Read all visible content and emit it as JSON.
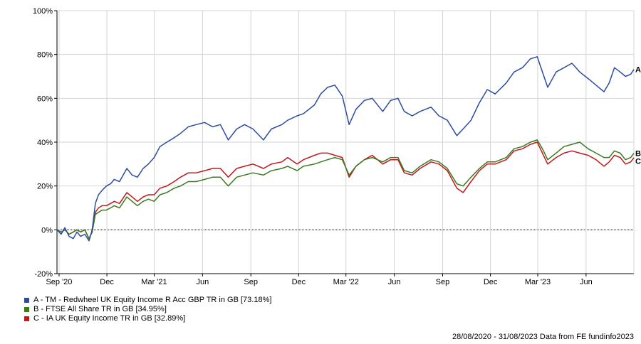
{
  "chart_data": {
    "type": "line",
    "ylim": [
      -20,
      100
    ],
    "y_ticks": [
      "100%",
      "80%",
      "60%",
      "40%",
      "20%",
      "0%",
      "-20%"
    ],
    "y_tick_values": [
      100,
      80,
      60,
      40,
      20,
      0,
      -20
    ],
    "x_ticks": [
      "Sep '20",
      "Dec",
      "Mar '21",
      "Jun",
      "Sep",
      "Dec",
      "Mar '22",
      "Jun",
      "Sep",
      "Dec",
      "Mar '23",
      "Jun"
    ],
    "x_tick_dates": [
      "2020-09-01",
      "2020-12-01",
      "2021-03-01",
      "2021-06-01",
      "2021-09-01",
      "2021-12-01",
      "2022-03-01",
      "2022-06-01",
      "2022-09-01",
      "2022-12-01",
      "2023-03-01",
      "2023-06-01"
    ],
    "x_range": [
      "2020-08-28",
      "2023-08-31"
    ],
    "grid": true,
    "legend_position": "bottom-left",
    "series": [
      {
        "name": "A - TM - Redwheel UK Equity Income R Acc GBP TR in GB [73.18%]",
        "end_label": "A",
        "color": "#2b4da0",
        "points": [
          [
            "2020-08-28",
            0
          ],
          [
            "2020-09-05",
            -2
          ],
          [
            "2020-09-12",
            1
          ],
          [
            "2020-09-20",
            -3
          ],
          [
            "2020-09-28",
            -4
          ],
          [
            "2020-10-05",
            -1
          ],
          [
            "2020-10-12",
            -3
          ],
          [
            "2020-10-20",
            -2
          ],
          [
            "2020-10-28",
            -5
          ],
          [
            "2020-11-03",
            0
          ],
          [
            "2020-11-09",
            12
          ],
          [
            "2020-11-15",
            16
          ],
          [
            "2020-11-22",
            18
          ],
          [
            "2020-11-30",
            20
          ],
          [
            "2020-12-08",
            21
          ],
          [
            "2020-12-15",
            23
          ],
          [
            "2020-12-25",
            22
          ],
          [
            "2021-01-08",
            28
          ],
          [
            "2021-01-18",
            25
          ],
          [
            "2021-01-28",
            24
          ],
          [
            "2021-02-08",
            28
          ],
          [
            "2021-02-18",
            30
          ],
          [
            "2021-03-01",
            33
          ],
          [
            "2021-03-12",
            38
          ],
          [
            "2021-03-25",
            40
          ],
          [
            "2021-04-08",
            42
          ],
          [
            "2021-04-20",
            44
          ],
          [
            "2021-05-05",
            47
          ],
          [
            "2021-05-20",
            48
          ],
          [
            "2021-06-05",
            49
          ],
          [
            "2021-06-20",
            47
          ],
          [
            "2021-07-05",
            48
          ],
          [
            "2021-07-20",
            41
          ],
          [
            "2021-08-05",
            46
          ],
          [
            "2021-08-20",
            48
          ],
          [
            "2021-09-05",
            46
          ],
          [
            "2021-09-25",
            41
          ],
          [
            "2021-10-10",
            46
          ],
          [
            "2021-10-30",
            48
          ],
          [
            "2021-11-10",
            50
          ],
          [
            "2021-11-28",
            52
          ],
          [
            "2021-12-10",
            53
          ],
          [
            "2021-12-31",
            57
          ],
          [
            "2022-01-12",
            62
          ],
          [
            "2022-01-25",
            65
          ],
          [
            "2022-02-08",
            66
          ],
          [
            "2022-02-22",
            61
          ],
          [
            "2022-03-07",
            48
          ],
          [
            "2022-03-20",
            55
          ],
          [
            "2022-04-05",
            59
          ],
          [
            "2022-04-20",
            60
          ],
          [
            "2022-05-10",
            54
          ],
          [
            "2022-05-25",
            59
          ],
          [
            "2022-06-08",
            60
          ],
          [
            "2022-06-20",
            54
          ],
          [
            "2022-07-05",
            52
          ],
          [
            "2022-07-20",
            54
          ],
          [
            "2022-08-10",
            56
          ],
          [
            "2022-08-25",
            52
          ],
          [
            "2022-09-10",
            50
          ],
          [
            "2022-09-28",
            43
          ],
          [
            "2022-10-10",
            46
          ],
          [
            "2022-10-25",
            50
          ],
          [
            "2022-11-10",
            58
          ],
          [
            "2022-11-25",
            64
          ],
          [
            "2022-12-10",
            62
          ],
          [
            "2022-12-31",
            67
          ],
          [
            "2023-01-15",
            72
          ],
          [
            "2023-01-31",
            74
          ],
          [
            "2023-02-15",
            78
          ],
          [
            "2023-02-28",
            79
          ],
          [
            "2023-03-10",
            72
          ],
          [
            "2023-03-20",
            65
          ],
          [
            "2023-04-05",
            72
          ],
          [
            "2023-04-20",
            74
          ],
          [
            "2023-05-05",
            76
          ],
          [
            "2023-05-20",
            72
          ],
          [
            "2023-06-05",
            69
          ],
          [
            "2023-06-20",
            66
          ],
          [
            "2023-07-05",
            63
          ],
          [
            "2023-07-15",
            67
          ],
          [
            "2023-07-25",
            74
          ],
          [
            "2023-08-05",
            72
          ],
          [
            "2023-08-15",
            70
          ],
          [
            "2023-08-25",
            71
          ],
          [
            "2023-08-31",
            73.18
          ]
        ]
      },
      {
        "name": "B - FTSE All Share TR in GB [34.95%]",
        "end_label": "B",
        "color": "#3c7a1e",
        "points": [
          [
            "2020-08-28",
            0
          ],
          [
            "2020-09-05",
            -1
          ],
          [
            "2020-09-12",
            0
          ],
          [
            "2020-09-20",
            -2
          ],
          [
            "2020-09-28",
            -1
          ],
          [
            "2020-10-05",
            0
          ],
          [
            "2020-10-12",
            -1
          ],
          [
            "2020-10-20",
            0
          ],
          [
            "2020-10-28",
            -4
          ],
          [
            "2020-11-03",
            -1
          ],
          [
            "2020-11-09",
            7
          ],
          [
            "2020-11-15",
            8
          ],
          [
            "2020-11-22",
            9
          ],
          [
            "2020-11-30",
            9
          ],
          [
            "2020-12-08",
            10
          ],
          [
            "2020-12-15",
            11
          ],
          [
            "2020-12-25",
            10
          ],
          [
            "2021-01-08",
            15
          ],
          [
            "2021-01-18",
            13
          ],
          [
            "2021-01-28",
            11
          ],
          [
            "2021-02-08",
            13
          ],
          [
            "2021-02-18",
            14
          ],
          [
            "2021-03-01",
            13
          ],
          [
            "2021-03-12",
            16
          ],
          [
            "2021-03-25",
            17
          ],
          [
            "2021-04-08",
            19
          ],
          [
            "2021-04-20",
            20
          ],
          [
            "2021-05-05",
            22
          ],
          [
            "2021-05-20",
            22
          ],
          [
            "2021-06-05",
            23
          ],
          [
            "2021-06-20",
            24
          ],
          [
            "2021-07-05",
            24
          ],
          [
            "2021-07-20",
            20
          ],
          [
            "2021-08-05",
            24
          ],
          [
            "2021-08-20",
            25
          ],
          [
            "2021-09-05",
            26
          ],
          [
            "2021-09-25",
            25
          ],
          [
            "2021-10-10",
            27
          ],
          [
            "2021-10-30",
            28
          ],
          [
            "2021-11-10",
            29
          ],
          [
            "2021-11-28",
            27
          ],
          [
            "2021-12-10",
            29
          ],
          [
            "2021-12-31",
            30
          ],
          [
            "2022-01-12",
            31
          ],
          [
            "2022-01-25",
            32
          ],
          [
            "2022-02-08",
            33
          ],
          [
            "2022-02-22",
            32
          ],
          [
            "2022-03-07",
            25
          ],
          [
            "2022-03-20",
            29
          ],
          [
            "2022-04-05",
            32
          ],
          [
            "2022-04-20",
            33
          ],
          [
            "2022-05-10",
            31
          ],
          [
            "2022-05-25",
            33
          ],
          [
            "2022-06-08",
            33
          ],
          [
            "2022-06-20",
            27
          ],
          [
            "2022-07-05",
            26
          ],
          [
            "2022-07-20",
            29
          ],
          [
            "2022-08-10",
            32
          ],
          [
            "2022-08-25",
            31
          ],
          [
            "2022-09-10",
            28
          ],
          [
            "2022-09-28",
            21
          ],
          [
            "2022-10-10",
            20
          ],
          [
            "2022-10-25",
            24
          ],
          [
            "2022-11-10",
            28
          ],
          [
            "2022-11-25",
            31
          ],
          [
            "2022-12-10",
            31
          ],
          [
            "2022-12-31",
            33
          ],
          [
            "2023-01-15",
            37
          ],
          [
            "2023-01-31",
            38
          ],
          [
            "2023-02-15",
            40
          ],
          [
            "2023-02-28",
            41
          ],
          [
            "2023-03-10",
            37
          ],
          [
            "2023-03-20",
            32
          ],
          [
            "2023-04-05",
            35
          ],
          [
            "2023-04-20",
            38
          ],
          [
            "2023-05-05",
            39
          ],
          [
            "2023-05-20",
            40
          ],
          [
            "2023-06-05",
            37
          ],
          [
            "2023-06-20",
            35
          ],
          [
            "2023-07-05",
            33
          ],
          [
            "2023-07-15",
            33
          ],
          [
            "2023-07-25",
            36
          ],
          [
            "2023-08-05",
            35
          ],
          [
            "2023-08-15",
            32
          ],
          [
            "2023-08-25",
            33
          ],
          [
            "2023-08-31",
            34.95
          ]
        ]
      },
      {
        "name": "C - IA UK Equity Income TR in GB [32.89%]",
        "end_label": "C",
        "color": "#c0181c",
        "points": [
          [
            "2020-08-28",
            0
          ],
          [
            "2020-09-05",
            -1
          ],
          [
            "2020-09-12",
            0
          ],
          [
            "2020-09-20",
            -2
          ],
          [
            "2020-09-28",
            -1
          ],
          [
            "2020-10-05",
            0
          ],
          [
            "2020-10-12",
            -1
          ],
          [
            "2020-10-20",
            0
          ],
          [
            "2020-10-28",
            -4
          ],
          [
            "2020-11-03",
            -1
          ],
          [
            "2020-11-09",
            8
          ],
          [
            "2020-11-15",
            10
          ],
          [
            "2020-11-22",
            11
          ],
          [
            "2020-11-30",
            11
          ],
          [
            "2020-12-08",
            12
          ],
          [
            "2020-12-15",
            13
          ],
          [
            "2020-12-25",
            12
          ],
          [
            "2021-01-08",
            17
          ],
          [
            "2021-01-18",
            15
          ],
          [
            "2021-01-28",
            13
          ],
          [
            "2021-02-08",
            15
          ],
          [
            "2021-02-18",
            16
          ],
          [
            "2021-03-01",
            16
          ],
          [
            "2021-03-12",
            19
          ],
          [
            "2021-03-25",
            20
          ],
          [
            "2021-04-08",
            22
          ],
          [
            "2021-04-20",
            24
          ],
          [
            "2021-05-05",
            26
          ],
          [
            "2021-05-20",
            26
          ],
          [
            "2021-06-05",
            27
          ],
          [
            "2021-06-20",
            28
          ],
          [
            "2021-07-05",
            28
          ],
          [
            "2021-07-20",
            24
          ],
          [
            "2021-08-05",
            28
          ],
          [
            "2021-08-20",
            29
          ],
          [
            "2021-09-05",
            30
          ],
          [
            "2021-09-25",
            28
          ],
          [
            "2021-10-10",
            30
          ],
          [
            "2021-10-30",
            31
          ],
          [
            "2021-11-10",
            33
          ],
          [
            "2021-11-28",
            30
          ],
          [
            "2021-12-10",
            32
          ],
          [
            "2021-12-31",
            34
          ],
          [
            "2022-01-12",
            35
          ],
          [
            "2022-01-25",
            35
          ],
          [
            "2022-02-08",
            34
          ],
          [
            "2022-02-22",
            33
          ],
          [
            "2022-03-07",
            24
          ],
          [
            "2022-03-20",
            29
          ],
          [
            "2022-04-05",
            32
          ],
          [
            "2022-04-20",
            34
          ],
          [
            "2022-05-10",
            30
          ],
          [
            "2022-05-25",
            32
          ],
          [
            "2022-06-08",
            32
          ],
          [
            "2022-06-20",
            26
          ],
          [
            "2022-07-05",
            25
          ],
          [
            "2022-07-20",
            28
          ],
          [
            "2022-08-10",
            31
          ],
          [
            "2022-08-25",
            30
          ],
          [
            "2022-09-10",
            27
          ],
          [
            "2022-09-28",
            19
          ],
          [
            "2022-10-10",
            17
          ],
          [
            "2022-10-25",
            22
          ],
          [
            "2022-11-10",
            27
          ],
          [
            "2022-11-25",
            30
          ],
          [
            "2022-12-10",
            30
          ],
          [
            "2022-12-31",
            32
          ],
          [
            "2023-01-15",
            36
          ],
          [
            "2023-01-31",
            37
          ],
          [
            "2023-02-15",
            39
          ],
          [
            "2023-02-28",
            40
          ],
          [
            "2023-03-10",
            35
          ],
          [
            "2023-03-20",
            30
          ],
          [
            "2023-04-05",
            33
          ],
          [
            "2023-04-20",
            35
          ],
          [
            "2023-05-05",
            36
          ],
          [
            "2023-05-20",
            35
          ],
          [
            "2023-06-05",
            34
          ],
          [
            "2023-06-20",
            32
          ],
          [
            "2023-07-05",
            29
          ],
          [
            "2023-07-15",
            31
          ],
          [
            "2023-07-25",
            34
          ],
          [
            "2023-08-05",
            33
          ],
          [
            "2023-08-15",
            30
          ],
          [
            "2023-08-25",
            31
          ],
          [
            "2023-08-31",
            32.89
          ]
        ]
      }
    ]
  },
  "footer": {
    "text": "28/08/2020 - 31/08/2023 Data from FE fundinfo2023"
  }
}
